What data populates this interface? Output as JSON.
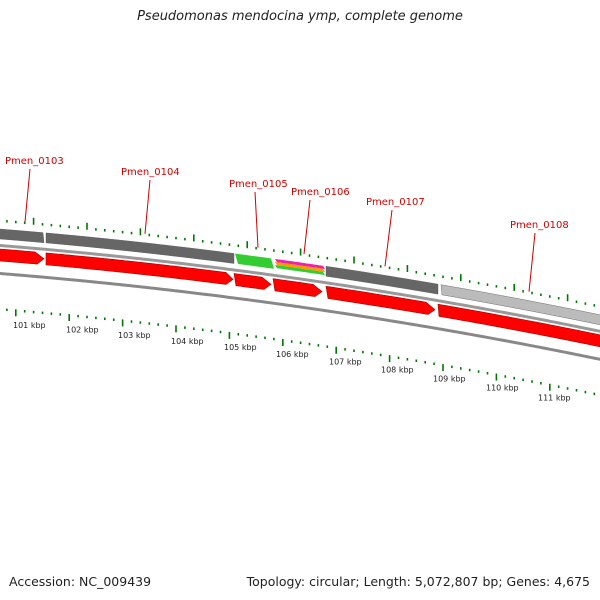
{
  "title": "Pseudomonas mendocina ymp, complete genome",
  "footer": {
    "accession": "Accession: NC_009439",
    "summary": "Topology: circular; Length: 5,072,807 bp; Genes: 4,675"
  },
  "gene_labels": [
    "Pmen_0103",
    "Pmen_0104",
    "Pmen_0105",
    "Pmen_0106",
    "Pmen_0107",
    "Pmen_0108"
  ],
  "scale_labels": [
    "101 kbp",
    "102 kbp",
    "103 kbp",
    "104 kbp",
    "105 kbp",
    "106 kbp",
    "107 kbp",
    "108 kbp",
    "109 kbp",
    "110 kbp",
    "111 kbp"
  ],
  "colors": {
    "gene_label": "#cc0000",
    "cds_arrow": "#ff0000",
    "tick": "#007700",
    "gene_band_dark": "#666666",
    "gene_band_light": "#bbbbbb",
    "highlight_green": "#33cc33",
    "highlight_magenta": "#ee22aa",
    "highlight_orange": "#ff9900"
  }
}
